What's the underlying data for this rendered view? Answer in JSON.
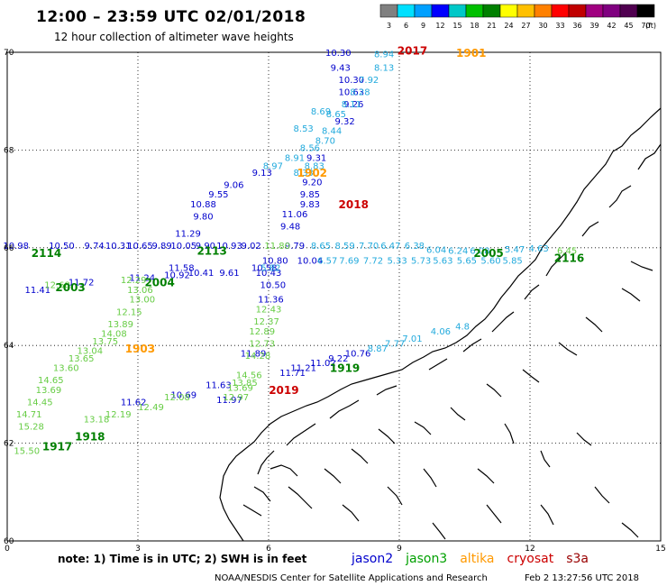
{
  "header": {
    "title": "12:00 – 23:59 UTC 02/01/2018",
    "subtitle": "12 hour collection of altimeter wave heights"
  },
  "colorbar": {
    "labels": [
      "3",
      "6",
      "9",
      "12",
      "15",
      "18",
      "21",
      "24",
      "27",
      "30",
      "33",
      "36",
      "39",
      "42",
      "45",
      "70"
    ],
    "unit": "(ft)",
    "colors": [
      "#808080",
      "#00e0ff",
      "#00a0ff",
      "#0000ff",
      "#00c8c8",
      "#00c000",
      "#008000",
      "#ffff00",
      "#ffc000",
      "#ff8000",
      "#ff0000",
      "#c00000",
      "#a00080",
      "#800080",
      "#500050",
      "#000000"
    ]
  },
  "axes": {
    "x_ticks": [
      "0",
      "3",
      "6",
      "9",
      "12",
      "15"
    ],
    "y_ticks": [
      "60",
      "62",
      "64",
      "66",
      "68",
      "70"
    ]
  },
  "footer": {
    "note": "note: 1) Time is in UTC; 2) SWH is in feet",
    "satellites": [
      {
        "name": "jason2",
        "color": "#0000cc"
      },
      {
        "name": "jason3",
        "color": "#00a000"
      },
      {
        "name": "altika",
        "color": "#ff9900"
      },
      {
        "name": "cryosat",
        "color": "#cc0000"
      },
      {
        "name": "s3a",
        "color": "#990000"
      }
    ],
    "credit": "NOAA/NESDIS Center for Satellite Applications and Research",
    "timestamp": "Feb  2 13:27:56 UTC 2018"
  },
  "time_tags": [
    {
      "text": "2017",
      "lon": 9.3,
      "lat": 70.05,
      "color": "#cc0000"
    },
    {
      "text": "1901",
      "lon": 10.65,
      "lat": 70.0,
      "color": "#ff9900"
    },
    {
      "text": "1902",
      "lon": 7.0,
      "lat": 67.55,
      "color": "#ff9900"
    },
    {
      "text": "2018",
      "lon": 7.95,
      "lat": 66.9,
      "color": "#cc0000"
    },
    {
      "text": "2114",
      "lon": 0.9,
      "lat": 65.9,
      "color": "#008000"
    },
    {
      "text": "2113",
      "lon": 4.7,
      "lat": 65.95,
      "color": "#008000"
    },
    {
      "text": "2003",
      "lon": 1.45,
      "lat": 65.2,
      "color": "#008000"
    },
    {
      "text": "2004",
      "lon": 3.5,
      "lat": 65.3,
      "color": "#008000"
    },
    {
      "text": "2005",
      "lon": 11.05,
      "lat": 65.9,
      "color": "#008000"
    },
    {
      "text": "2116",
      "lon": 12.9,
      "lat": 65.8,
      "color": "#008000"
    },
    {
      "text": "1903",
      "lon": 3.05,
      "lat": 63.95,
      "color": "#ff9900"
    },
    {
      "text": "1919",
      "lon": 7.75,
      "lat": 63.55,
      "color": "#008000"
    },
    {
      "text": "2019",
      "lon": 6.35,
      "lat": 63.1,
      "color": "#cc0000"
    },
    {
      "text": "1918",
      "lon": 1.9,
      "lat": 62.15,
      "color": "#008000"
    },
    {
      "text": "1917",
      "lon": 1.15,
      "lat": 61.95,
      "color": "#008000"
    }
  ],
  "wave_heights": [
    {
      "text": "10.30",
      "lon": 7.6,
      "lat": 70.0,
      "color": "#0000cc"
    },
    {
      "text": "9.43",
      "lon": 7.65,
      "lat": 69.7,
      "color": "#0000cc"
    },
    {
      "text": "10.30",
      "lon": 7.9,
      "lat": 69.45,
      "color": "#0000cc"
    },
    {
      "text": "10.63",
      "lon": 7.9,
      "lat": 69.2,
      "color": "#0000cc"
    },
    {
      "text": "9.26",
      "lon": 7.95,
      "lat": 68.95,
      "color": "#0000cc"
    },
    {
      "text": "9.32",
      "lon": 7.75,
      "lat": 68.6,
      "color": "#0000cc"
    },
    {
      "text": "9.31",
      "lon": 7.1,
      "lat": 67.85,
      "color": "#0000cc"
    },
    {
      "text": "9.13",
      "lon": 5.85,
      "lat": 67.55,
      "color": "#0000cc"
    },
    {
      "text": "9.06",
      "lon": 5.2,
      "lat": 67.3,
      "color": "#0000cc"
    },
    {
      "text": "9.20",
      "lon": 7.0,
      "lat": 67.35,
      "color": "#0000cc"
    },
    {
      "text": "9.55",
      "lon": 4.85,
      "lat": 67.1,
      "color": "#0000cc"
    },
    {
      "text": "9.85",
      "lon": 6.95,
      "lat": 67.1,
      "color": "#0000cc"
    },
    {
      "text": "10.88",
      "lon": 4.5,
      "lat": 66.9,
      "color": "#0000cc"
    },
    {
      "text": "9.83",
      "lon": 6.95,
      "lat": 66.9,
      "color": "#0000cc"
    },
    {
      "text": "9.80",
      "lon": 4.5,
      "lat": 66.65,
      "color": "#0000cc"
    },
    {
      "text": "11.06",
      "lon": 6.6,
      "lat": 66.7,
      "color": "#0000cc"
    },
    {
      "text": "11.29",
      "lon": 4.15,
      "lat": 66.3,
      "color": "#0000cc"
    },
    {
      "text": "9.48",
      "lon": 6.5,
      "lat": 66.45,
      "color": "#0000cc"
    },
    {
      "text": "10.98",
      "lon": 0.2,
      "lat": 66.05,
      "color": "#0000cc"
    },
    {
      "text": "10.50",
      "lon": 1.25,
      "lat": 66.05,
      "color": "#0000cc"
    },
    {
      "text": "9.74",
      "lon": 2.0,
      "lat": 66.05,
      "color": "#0000cc"
    },
    {
      "text": "10.31",
      "lon": 2.55,
      "lat": 66.05,
      "color": "#0000cc"
    },
    {
      "text": "10.65",
      "lon": 3.05,
      "lat": 66.05,
      "color": "#0000cc"
    },
    {
      "text": "9.89",
      "lon": 3.55,
      "lat": 66.05,
      "color": "#0000cc"
    },
    {
      "text": "10.05",
      "lon": 4.05,
      "lat": 66.05,
      "color": "#0000cc"
    },
    {
      "text": "9.90",
      "lon": 4.55,
      "lat": 66.05,
      "color": "#0000cc"
    },
    {
      "text": "10.93",
      "lon": 5.1,
      "lat": 66.05,
      "color": "#0000cc"
    },
    {
      "text": "9.02",
      "lon": 5.6,
      "lat": 66.05,
      "color": "#0000cc"
    },
    {
      "text": "9.79",
      "lon": 6.6,
      "lat": 66.05,
      "color": "#0000cc"
    },
    {
      "text": "10.80",
      "lon": 6.15,
      "lat": 65.75,
      "color": "#0000cc"
    },
    {
      "text": "11.58",
      "lon": 4.0,
      "lat": 65.6,
      "color": "#0000cc"
    },
    {
      "text": "10.58",
      "lon": 5.9,
      "lat": 65.6,
      "color": "#0000cc"
    },
    {
      "text": "10.92",
      "lon": 3.9,
      "lat": 65.45,
      "color": "#0000cc"
    },
    {
      "text": "10.41",
      "lon": 4.45,
      "lat": 65.5,
      "color": "#0000cc"
    },
    {
      "text": "9.61",
      "lon": 5.1,
      "lat": 65.5,
      "color": "#0000cc"
    },
    {
      "text": "10.43",
      "lon": 6.0,
      "lat": 65.5,
      "color": "#0000cc"
    },
    {
      "text": "10.04",
      "lon": 6.95,
      "lat": 65.75,
      "color": "#0000cc"
    },
    {
      "text": "11.41",
      "lon": 0.7,
      "lat": 65.15,
      "color": "#0000cc"
    },
    {
      "text": "11.72",
      "lon": 1.7,
      "lat": 65.3,
      "color": "#0000cc"
    },
    {
      "text": "11.24",
      "lon": 3.1,
      "lat": 65.4,
      "color": "#0000cc"
    },
    {
      "text": "10.50",
      "lon": 6.1,
      "lat": 65.25,
      "color": "#0000cc"
    },
    {
      "text": "11.36",
      "lon": 6.05,
      "lat": 64.95,
      "color": "#0000cc"
    },
    {
      "text": "11.89",
      "lon": 5.65,
      "lat": 63.85,
      "color": "#0000cc"
    },
    {
      "text": "11.71",
      "lon": 6.55,
      "lat": 63.45,
      "color": "#0000cc"
    },
    {
      "text": "11.21",
      "lon": 6.8,
      "lat": 63.55,
      "color": "#0000cc"
    },
    {
      "text": "11.02",
      "lon": 7.25,
      "lat": 63.65,
      "color": "#0000cc"
    },
    {
      "text": "9.22",
      "lon": 7.6,
      "lat": 63.75,
      "color": "#0000cc"
    },
    {
      "text": "10.76",
      "lon": 8.05,
      "lat": 63.85,
      "color": "#0000cc"
    },
    {
      "text": "11.63",
      "lon": 4.85,
      "lat": 63.2,
      "color": "#0000cc"
    },
    {
      "text": "10.69",
      "lon": 4.05,
      "lat": 63.0,
      "color": "#0000cc"
    },
    {
      "text": "11.62",
      "lon": 2.9,
      "lat": 62.85,
      "color": "#0000cc"
    },
    {
      "text": "11.97",
      "lon": 5.1,
      "lat": 62.9,
      "color": "#0000cc"
    },
    {
      "text": "8.94",
      "lon": 8.65,
      "lat": 69.97,
      "color": "#22aadd"
    },
    {
      "text": "8.13",
      "lon": 8.65,
      "lat": 69.7,
      "color": "#22aadd"
    },
    {
      "text": "7.92",
      "lon": 8.3,
      "lat": 69.45,
      "color": "#22aadd"
    },
    {
      "text": "8.28",
      "lon": 8.1,
      "lat": 69.2,
      "color": "#22aadd"
    },
    {
      "text": "8.11",
      "lon": 7.9,
      "lat": 68.95,
      "color": "#22aadd"
    },
    {
      "text": "8.69",
      "lon": 7.2,
      "lat": 68.8,
      "color": "#22aadd"
    },
    {
      "text": "8.65",
      "lon": 7.55,
      "lat": 68.75,
      "color": "#22aadd"
    },
    {
      "text": "8.53",
      "lon": 6.8,
      "lat": 68.45,
      "color": "#22aadd"
    },
    {
      "text": "8.44",
      "lon": 7.45,
      "lat": 68.4,
      "color": "#22aadd"
    },
    {
      "text": "8.70",
      "lon": 7.3,
      "lat": 68.2,
      "color": "#22aadd"
    },
    {
      "text": "8.56",
      "lon": 6.95,
      "lat": 68.05,
      "color": "#22aadd"
    },
    {
      "text": "8.91",
      "lon": 6.6,
      "lat": 67.85,
      "color": "#22aadd"
    },
    {
      "text": "8.83",
      "lon": 7.05,
      "lat": 67.68,
      "color": "#22aadd"
    },
    {
      "text": "8.97",
      "lon": 6.1,
      "lat": 67.68,
      "color": "#22aadd"
    },
    {
      "text": "8.33",
      "lon": 6.8,
      "lat": 67.55,
      "color": "#22aadd"
    },
    {
      "text": "8.65",
      "lon": 7.2,
      "lat": 66.05,
      "color": "#22aadd"
    },
    {
      "text": "8.59",
      "lon": 7.75,
      "lat": 66.05,
      "color": "#22aadd"
    },
    {
      "text": "7.70",
      "lon": 8.3,
      "lat": 66.05,
      "color": "#22aadd"
    },
    {
      "text": "6.47",
      "lon": 8.8,
      "lat": 66.05,
      "color": "#22aadd"
    },
    {
      "text": "6.38",
      "lon": 9.35,
      "lat": 66.05,
      "color": "#22aadd"
    },
    {
      "text": "6.04",
      "lon": 9.85,
      "lat": 65.97,
      "color": "#22aadd"
    },
    {
      "text": "6.24",
      "lon": 10.35,
      "lat": 65.95,
      "color": "#22aadd"
    },
    {
      "text": "6.08",
      "lon": 10.85,
      "lat": 65.95,
      "color": "#22aadd"
    },
    {
      "text": "5.47",
      "lon": 11.65,
      "lat": 65.98,
      "color": "#22aadd"
    },
    {
      "text": "4.63",
      "lon": 12.2,
      "lat": 66.0,
      "color": "#22aadd"
    },
    {
      "text": "6.57",
      "lon": 7.35,
      "lat": 65.75,
      "color": "#22aadd"
    },
    {
      "text": "7.69",
      "lon": 7.85,
      "lat": 65.75,
      "color": "#22aadd"
    },
    {
      "text": "7.72",
      "lon": 8.4,
      "lat": 65.75,
      "color": "#22aadd"
    },
    {
      "text": "5.33",
      "lon": 8.95,
      "lat": 65.75,
      "color": "#22aadd"
    },
    {
      "text": "5.73",
      "lon": 9.5,
      "lat": 65.75,
      "color": "#22aadd"
    },
    {
      "text": "5.63",
      "lon": 10.0,
      "lat": 65.75,
      "color": "#22aadd"
    },
    {
      "text": "5.65",
      "lon": 10.55,
      "lat": 65.75,
      "color": "#22aadd"
    },
    {
      "text": "5.60",
      "lon": 11.1,
      "lat": 65.75,
      "color": "#22aadd"
    },
    {
      "text": "5.85",
      "lon": 11.6,
      "lat": 65.75,
      "color": "#22aadd"
    },
    {
      "text": "8.87",
      "lon": 8.5,
      "lat": 63.95,
      "color": "#22aadd"
    },
    {
      "text": "7.77",
      "lon": 8.9,
      "lat": 64.05,
      "color": "#22aadd"
    },
    {
      "text": "7.01",
      "lon": 9.3,
      "lat": 64.15,
      "color": "#22aadd"
    },
    {
      "text": "4.06",
      "lon": 9.95,
      "lat": 64.3,
      "color": "#22aadd"
    },
    {
      "text": "4.8",
      "lon": 10.45,
      "lat": 64.4,
      "color": "#22aadd"
    },
    {
      "text": "5.82",
      "lon": 6.05,
      "lat": 65.6,
      "color": "#22aadd"
    },
    {
      "text": "12.43",
      "lon": 6.0,
      "lat": 64.75,
      "color": "#66cc44"
    },
    {
      "text": "12.37",
      "lon": 5.95,
      "lat": 64.5,
      "color": "#66cc44"
    },
    {
      "text": "12.89",
      "lon": 5.85,
      "lat": 64.3,
      "color": "#66cc44"
    },
    {
      "text": "12.73",
      "lon": 5.85,
      "lat": 64.05,
      "color": "#66cc44"
    },
    {
      "text": "14.28",
      "lon": 5.75,
      "lat": 63.8,
      "color": "#66cc44"
    },
    {
      "text": "14.56",
      "lon": 5.55,
      "lat": 63.4,
      "color": "#66cc44"
    },
    {
      "text": "13.85",
      "lon": 5.45,
      "lat": 63.25,
      "color": "#66cc44"
    },
    {
      "text": "13.69",
      "lon": 5.35,
      "lat": 63.15,
      "color": "#66cc44"
    },
    {
      "text": "12.97",
      "lon": 5.25,
      "lat": 62.95,
      "color": "#66cc44"
    },
    {
      "text": "12.08",
      "lon": 3.9,
      "lat": 62.95,
      "color": "#66cc44"
    },
    {
      "text": "12.49",
      "lon": 3.3,
      "lat": 62.75,
      "color": "#66cc44"
    },
    {
      "text": "12.19",
      "lon": 2.55,
      "lat": 62.6,
      "color": "#66cc44"
    },
    {
      "text": "13.18",
      "lon": 2.05,
      "lat": 62.5,
      "color": "#66cc44"
    },
    {
      "text": "13.00",
      "lon": 3.1,
      "lat": 64.95,
      "color": "#66cc44"
    },
    {
      "text": "12.15",
      "lon": 2.8,
      "lat": 64.7,
      "color": "#66cc44"
    },
    {
      "text": "13.89",
      "lon": 2.6,
      "lat": 64.45,
      "color": "#66cc44"
    },
    {
      "text": "14.08",
      "lon": 2.45,
      "lat": 64.25,
      "color": "#66cc44"
    },
    {
      "text": "13.75",
      "lon": 2.25,
      "lat": 64.1,
      "color": "#66cc44"
    },
    {
      "text": "13.04",
      "lon": 1.9,
      "lat": 63.9,
      "color": "#66cc44"
    },
    {
      "text": "13.65",
      "lon": 1.7,
      "lat": 63.75,
      "color": "#66cc44"
    },
    {
      "text": "13.60",
      "lon": 1.35,
      "lat": 63.55,
      "color": "#66cc44"
    },
    {
      "text": "14.65",
      "lon": 1.0,
      "lat": 63.3,
      "color": "#66cc44"
    },
    {
      "text": "13.69",
      "lon": 0.95,
      "lat": 63.1,
      "color": "#66cc44"
    },
    {
      "text": "14.45",
      "lon": 0.75,
      "lat": 62.85,
      "color": "#66cc44"
    },
    {
      "text": "14.71",
      "lon": 0.5,
      "lat": 62.6,
      "color": "#66cc44"
    },
    {
      "text": "15.28",
      "lon": 0.55,
      "lat": 62.35,
      "color": "#66cc44"
    },
    {
      "text": "15.50",
      "lon": 0.45,
      "lat": 61.85,
      "color": "#66cc44"
    },
    {
      "text": "12.29",
      "lon": 2.9,
      "lat": 65.35,
      "color": "#66cc44"
    },
    {
      "text": "13.06",
      "lon": 3.05,
      "lat": 65.15,
      "color": "#66cc44"
    },
    {
      "text": "12.68",
      "lon": 1.15,
      "lat": 65.25,
      "color": "#66cc44"
    },
    {
      "text": "6.45",
      "lon": 12.85,
      "lat": 65.95,
      "color": "#66cc44"
    },
    {
      "text": "11.80",
      "lon": 6.2,
      "lat": 66.05,
      "color": "#66cc44"
    }
  ]
}
